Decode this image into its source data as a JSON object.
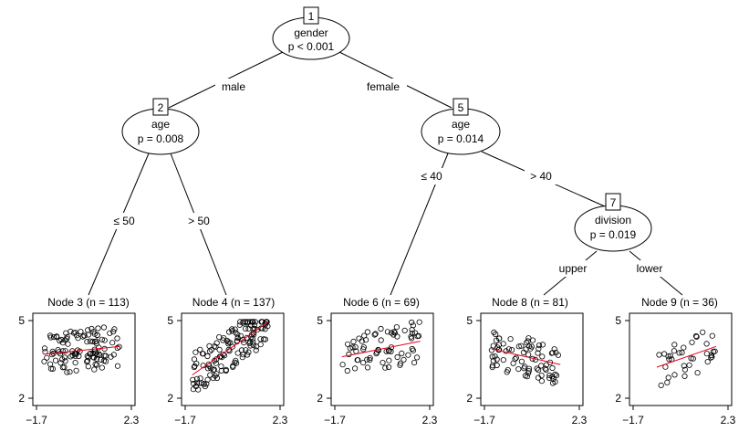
{
  "tree": {
    "inner_nodes": [
      {
        "id": "1",
        "var": "gender",
        "p": "p < 0.001"
      },
      {
        "id": "2",
        "var": "age",
        "p": "p = 0.008"
      },
      {
        "id": "5",
        "var": "age",
        "p": "p = 0.014"
      },
      {
        "id": "7",
        "var": "division",
        "p": "p = 0.019"
      }
    ],
    "edge_labels": [
      "male",
      "female",
      "≤ 50",
      "> 50",
      "≤ 40",
      "> 40",
      "upper",
      "lower"
    ],
    "terminal_nodes": [
      {
        "title": "Node 3 (n = 113)",
        "slope": 0.08,
        "y_start": 3.7,
        "y_end": 4.0
      },
      {
        "title": "Node 4 (n = 137)",
        "slope": 0.4,
        "y_start": 2.9,
        "y_end": 4.95
      },
      {
        "title": "Node 6 (n = 69)",
        "slope": 0.2,
        "y_start": 3.6,
        "y_end": 4.2
      },
      {
        "title": "Node 8 (n = 81)",
        "slope": -0.15,
        "y_start": 3.9,
        "y_end": 3.3
      },
      {
        "title": "Node 9 (n = 36)",
        "slope": 0.3,
        "y_start": 3.2,
        "y_end": 4.0
      }
    ]
  },
  "chart_data": {
    "type": "scatter",
    "xlim": [
      -1.7,
      2.3
    ],
    "ylim": [
      2,
      5
    ],
    "x_ticks": [
      "-1.7",
      "2.3"
    ],
    "y_ticks": [
      "2",
      "5"
    ]
  }
}
